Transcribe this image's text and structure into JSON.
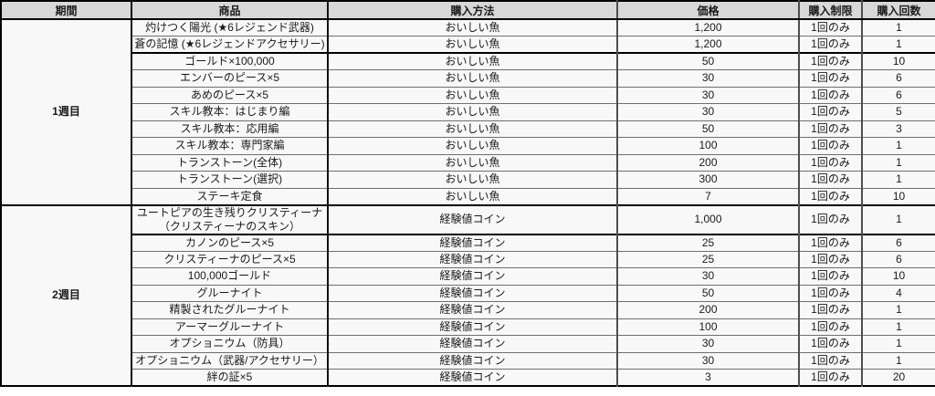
{
  "colors": {
    "header_bg": "#d8d8d8",
    "cell_bg": "#f8f8f8",
    "grid_line": "#6f6f6f",
    "heavy_line": "#000000",
    "text": "#1a1a1a"
  },
  "table": {
    "headers": [
      "期間",
      "商品",
      "購入方法",
      "価格",
      "購入制限",
      "購入回数"
    ],
    "weeks": [
      {
        "period": "1週目",
        "rows": [
          {
            "item": "灼けつく陽光 (★6レジェンド武器)",
            "method": "おいしい魚",
            "price": "1,200",
            "limit": "1回のみ",
            "count": "1"
          },
          {
            "item": "蒼の記憶 (★6レジェンドアクセサリー)",
            "method": "おいしい魚",
            "price": "1,200",
            "limit": "1回のみ",
            "count": "1"
          },
          {
            "item": "ゴールド×100,000",
            "method": "おいしい魚",
            "price": "50",
            "limit": "1回のみ",
            "count": "10",
            "new_group": true
          },
          {
            "item": "エンバーのピース×5",
            "method": "おいしい魚",
            "price": "30",
            "limit": "1回のみ",
            "count": "6"
          },
          {
            "item": "あめのピース×5",
            "method": "おいしい魚",
            "price": "30",
            "limit": "1回のみ",
            "count": "6"
          },
          {
            "item": "スキル教本：はじまり編",
            "method": "おいしい魚",
            "price": "30",
            "limit": "1回のみ",
            "count": "5"
          },
          {
            "item": "スキル教本：応用編",
            "method": "おいしい魚",
            "price": "50",
            "limit": "1回のみ",
            "count": "3"
          },
          {
            "item": "スキル教本：専門家編",
            "method": "おいしい魚",
            "price": "100",
            "limit": "1回のみ",
            "count": "1"
          },
          {
            "item": "トランストーン(全体)",
            "method": "おいしい魚",
            "price": "200",
            "limit": "1回のみ",
            "count": "1"
          },
          {
            "item": "トランストーン(選択)",
            "method": "おいしい魚",
            "price": "300",
            "limit": "1回のみ",
            "count": "1"
          },
          {
            "item": "ステーキ定食",
            "method": "おいしい魚",
            "price": "7",
            "limit": "1回のみ",
            "count": "10"
          }
        ]
      },
      {
        "period": "2週目",
        "rows": [
          {
            "item": "ユートピアの生き残りクリスティーナ\n（クリスティーナのスキン）",
            "method": "経験値コイン",
            "price": "1,000",
            "limit": "1回のみ",
            "count": "1"
          },
          {
            "item": "カノンのピース×5",
            "method": "経験値コイン",
            "price": "25",
            "limit": "1回のみ",
            "count": "6",
            "new_group": true
          },
          {
            "item": "クリスティーナのピース×5",
            "method": "経験値コイン",
            "price": "25",
            "limit": "1回のみ",
            "count": "6"
          },
          {
            "item": "100,000ゴールド",
            "method": "経験値コイン",
            "price": "30",
            "limit": "1回のみ",
            "count": "10"
          },
          {
            "item": "グルーナイト",
            "method": "経験値コイン",
            "price": "50",
            "limit": "1回のみ",
            "count": "4"
          },
          {
            "item": "精製されたグルーナイト",
            "method": "経験値コイン",
            "price": "200",
            "limit": "1回のみ",
            "count": "1"
          },
          {
            "item": "アーマーグルーナイト",
            "method": "経験値コイン",
            "price": "100",
            "limit": "1回のみ",
            "count": "1"
          },
          {
            "item": "オプショニウム（防具）",
            "method": "経験値コイン",
            "price": "30",
            "limit": "1回のみ",
            "count": "1"
          },
          {
            "item": "オプショニウム（武器/アクセサリー）",
            "method": "経験値コイン",
            "price": "30",
            "limit": "1回のみ",
            "count": "1"
          },
          {
            "item": "絆の証×5",
            "method": "経験値コイン",
            "price": "3",
            "limit": "1回のみ",
            "count": "20"
          }
        ]
      }
    ]
  }
}
